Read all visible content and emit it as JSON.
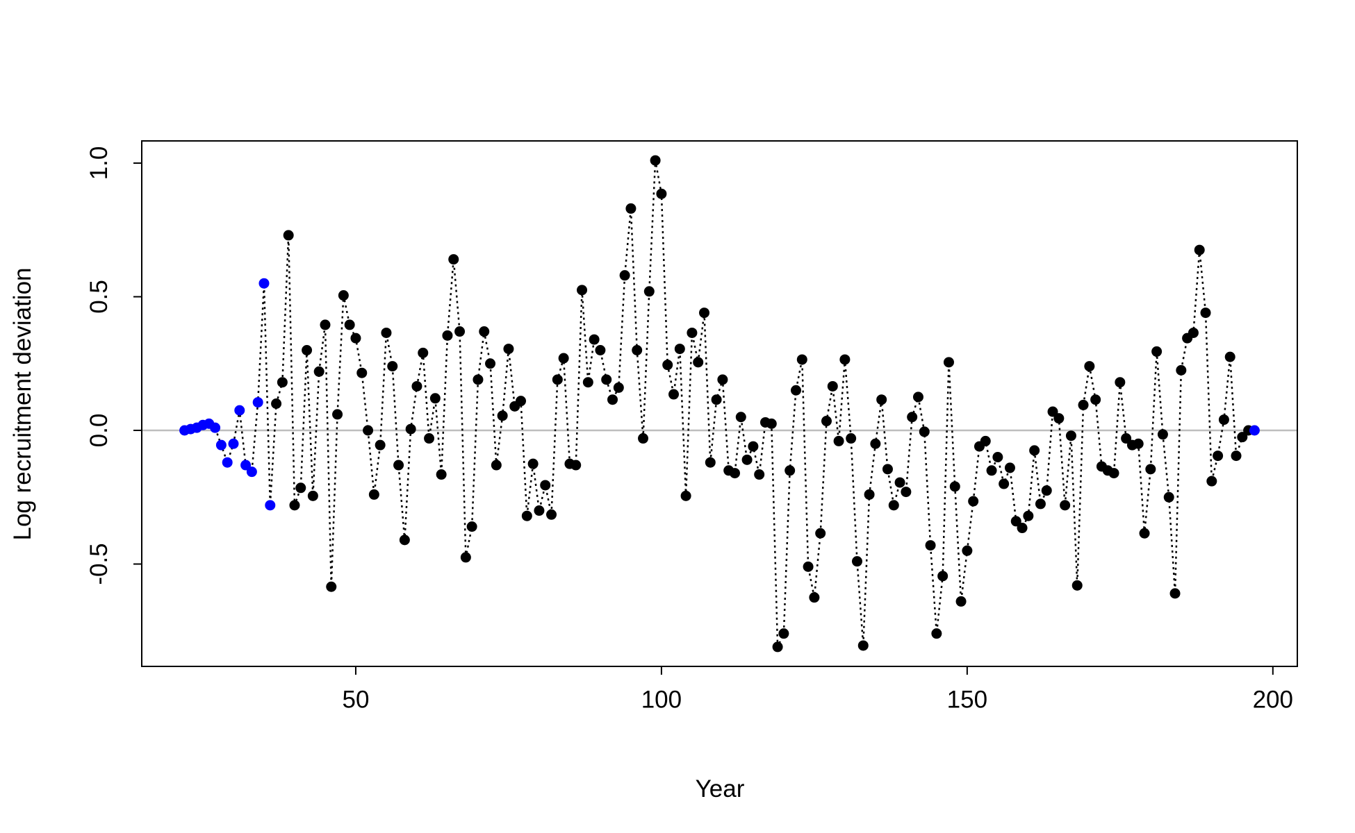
{
  "chart_data": {
    "type": "line",
    "x_label": "Year",
    "y_label": "Log recruitment deviation",
    "x": [
      22,
      23,
      24,
      25,
      26,
      27,
      28,
      29,
      30,
      31,
      32,
      33,
      34,
      35,
      36,
      37,
      38,
      39,
      40,
      41,
      42,
      43,
      44,
      45,
      46,
      47,
      48,
      49,
      50,
      51,
      52,
      53,
      54,
      55,
      56,
      57,
      58,
      59,
      60,
      61,
      62,
      63,
      64,
      65,
      66,
      67,
      68,
      69,
      70,
      71,
      72,
      73,
      74,
      75,
      76,
      77,
      78,
      79,
      80,
      81,
      82,
      83,
      84,
      85,
      86,
      87,
      88,
      89,
      90,
      91,
      92,
      93,
      94,
      95,
      96,
      97,
      98,
      99,
      100,
      101,
      102,
      103,
      104,
      105,
      106,
      107,
      108,
      109,
      110,
      111,
      112,
      113,
      114,
      115,
      116,
      117,
      118,
      119,
      120,
      121,
      122,
      123,
      124,
      125,
      126,
      127,
      128,
      129,
      130,
      131,
      132,
      133,
      134,
      135,
      136,
      137,
      138,
      139,
      140,
      141,
      142,
      143,
      144,
      145,
      146,
      147,
      148,
      149,
      150,
      151,
      152,
      153,
      154,
      155,
      156,
      157,
      158,
      159,
      160,
      161,
      162,
      163,
      164,
      165,
      166,
      167,
      168,
      169,
      170,
      171,
      172,
      173,
      174,
      175,
      176,
      177,
      178,
      179,
      180,
      181,
      182,
      183,
      184,
      185,
      186,
      187,
      188,
      189,
      190,
      191,
      192,
      193,
      194,
      195,
      196,
      197
    ],
    "series": [
      {
        "values": [
          0.0,
          0.005,
          0.01,
          0.02,
          0.025,
          0.01,
          -0.055,
          -0.12,
          -0.05,
          0.075,
          -0.13,
          -0.155,
          0.105,
          0.55,
          -0.28,
          0.1,
          0.18,
          0.73,
          -0.28,
          -0.215,
          0.3,
          -0.245,
          0.22,
          0.395,
          -0.585,
          0.06,
          0.505,
          0.395,
          0.345,
          0.215,
          0.0,
          -0.24,
          -0.055,
          0.365,
          0.24,
          -0.13,
          -0.41,
          0.005,
          0.165,
          0.29,
          -0.03,
          0.12,
          -0.165,
          0.355,
          0.64,
          0.37,
          -0.475,
          -0.36,
          0.19,
          0.37,
          0.25,
          -0.13,
          0.055,
          0.305,
          0.09,
          0.11,
          -0.32,
          -0.125,
          -0.3,
          -0.205,
          -0.315,
          0.19,
          0.27,
          -0.125,
          -0.13,
          0.525,
          0.18,
          0.34,
          0.3,
          0.19,
          0.115,
          0.16,
          0.58,
          0.83,
          0.3,
          -0.03,
          0.52,
          1.01,
          0.885,
          0.245,
          0.135,
          0.305,
          -0.245,
          0.365,
          0.255,
          0.44,
          -0.12,
          0.115,
          0.19,
          -0.15,
          -0.16,
          0.05,
          -0.11,
          -0.06,
          -0.165,
          0.03,
          0.025,
          -0.81,
          -0.76,
          -0.15,
          0.15,
          0.265,
          -0.51,
          -0.625,
          -0.385,
          0.035,
          0.165,
          -0.04,
          0.265,
          -0.03,
          -0.49,
          -0.805,
          -0.24,
          -0.05,
          0.115,
          -0.145,
          -0.28,
          -0.195,
          -0.23,
          0.05,
          0.125,
          -0.005,
          -0.43,
          -0.76,
          -0.545,
          0.255,
          -0.21,
          -0.64,
          -0.45,
          -0.265,
          -0.06,
          -0.04,
          -0.15,
          -0.1,
          -0.2,
          -0.14,
          -0.34,
          -0.365,
          -0.32,
          -0.075,
          -0.275,
          -0.225,
          0.07,
          0.045,
          -0.28,
          -0.02,
          -0.58,
          0.095,
          0.24,
          0.115,
          -0.135,
          -0.15,
          -0.16,
          0.18,
          -0.03,
          -0.055,
          -0.05,
          -0.385,
          -0.145,
          0.295,
          -0.015,
          -0.25,
          -0.61,
          0.225,
          0.345,
          0.365,
          0.675,
          0.44,
          -0.19,
          -0.095,
          0.04,
          0.275,
          -0.095,
          -0.025,
          0.0,
          0.0
        ],
        "color": "#000000",
        "point_colors": [
          "#0000ff",
          "#0000ff",
          "#0000ff",
          "#0000ff",
          "#0000ff",
          "#0000ff",
          "#0000ff",
          "#0000ff",
          "#0000ff",
          "#0000ff",
          "#0000ff",
          "#0000ff",
          "#0000ff",
          "#0000ff",
          "#0000ff",
          "#000000",
          "#000000",
          "#000000",
          "#000000",
          "#000000",
          "#000000",
          "#000000",
          "#000000",
          "#000000",
          "#000000",
          "#000000",
          "#000000",
          "#000000",
          "#000000",
          "#000000",
          "#000000",
          "#000000",
          "#000000",
          "#000000",
          "#000000",
          "#000000",
          "#000000",
          "#000000",
          "#000000",
          "#000000",
          "#000000",
          "#000000",
          "#000000",
          "#000000",
          "#000000",
          "#000000",
          "#000000",
          "#000000",
          "#000000",
          "#000000",
          "#000000",
          "#000000",
          "#000000",
          "#000000",
          "#000000",
          "#000000",
          "#000000",
          "#000000",
          "#000000",
          "#000000",
          "#000000",
          "#000000",
          "#000000",
          "#000000",
          "#000000",
          "#000000",
          "#000000",
          "#000000",
          "#000000",
          "#000000",
          "#000000",
          "#000000",
          "#000000",
          "#000000",
          "#000000",
          "#000000",
          "#000000",
          "#000000",
          "#000000",
          "#000000",
          "#000000",
          "#000000",
          "#000000",
          "#000000",
          "#000000",
          "#000000",
          "#000000",
          "#000000",
          "#000000",
          "#000000",
          "#000000",
          "#000000",
          "#000000",
          "#000000",
          "#000000",
          "#000000",
          "#000000",
          "#000000",
          "#000000",
          "#000000",
          "#000000",
          "#000000",
          "#000000",
          "#000000",
          "#000000",
          "#000000",
          "#000000",
          "#000000",
          "#000000",
          "#000000",
          "#000000",
          "#000000",
          "#000000",
          "#000000",
          "#000000",
          "#000000",
          "#000000",
          "#000000",
          "#000000",
          "#000000",
          "#000000",
          "#000000",
          "#000000",
          "#000000",
          "#000000",
          "#000000",
          "#000000",
          "#000000",
          "#000000",
          "#000000",
          "#000000",
          "#000000",
          "#000000",
          "#000000",
          "#000000",
          "#000000",
          "#000000",
          "#000000",
          "#000000",
          "#000000",
          "#000000",
          "#000000",
          "#000000",
          "#000000",
          "#000000",
          "#000000",
          "#000000",
          "#000000",
          "#000000",
          "#000000",
          "#000000",
          "#000000",
          "#000000",
          "#000000",
          "#000000",
          "#000000",
          "#000000",
          "#000000",
          "#000000",
          "#000000",
          "#000000",
          "#000000",
          "#000000",
          "#000000",
          "#000000",
          "#000000",
          "#000000",
          "#000000",
          "#000000",
          "#000000",
          "#000000",
          "#000000",
          "#000000",
          "#000000",
          "#000000",
          "#0000ff"
        ]
      }
    ],
    "xlim": [
      15,
      204
    ],
    "ylim": [
      -0.883,
      1.083
    ],
    "xticks": [
      50,
      100,
      150,
      200
    ],
    "yticks": [
      -0.5,
      {
        "value": 0,
        "label": "0.0"
      },
      0.5,
      {
        "value": 1,
        "label": "1.0"
      }
    ],
    "hline": 0,
    "hline_color": "#bebebe"
  }
}
